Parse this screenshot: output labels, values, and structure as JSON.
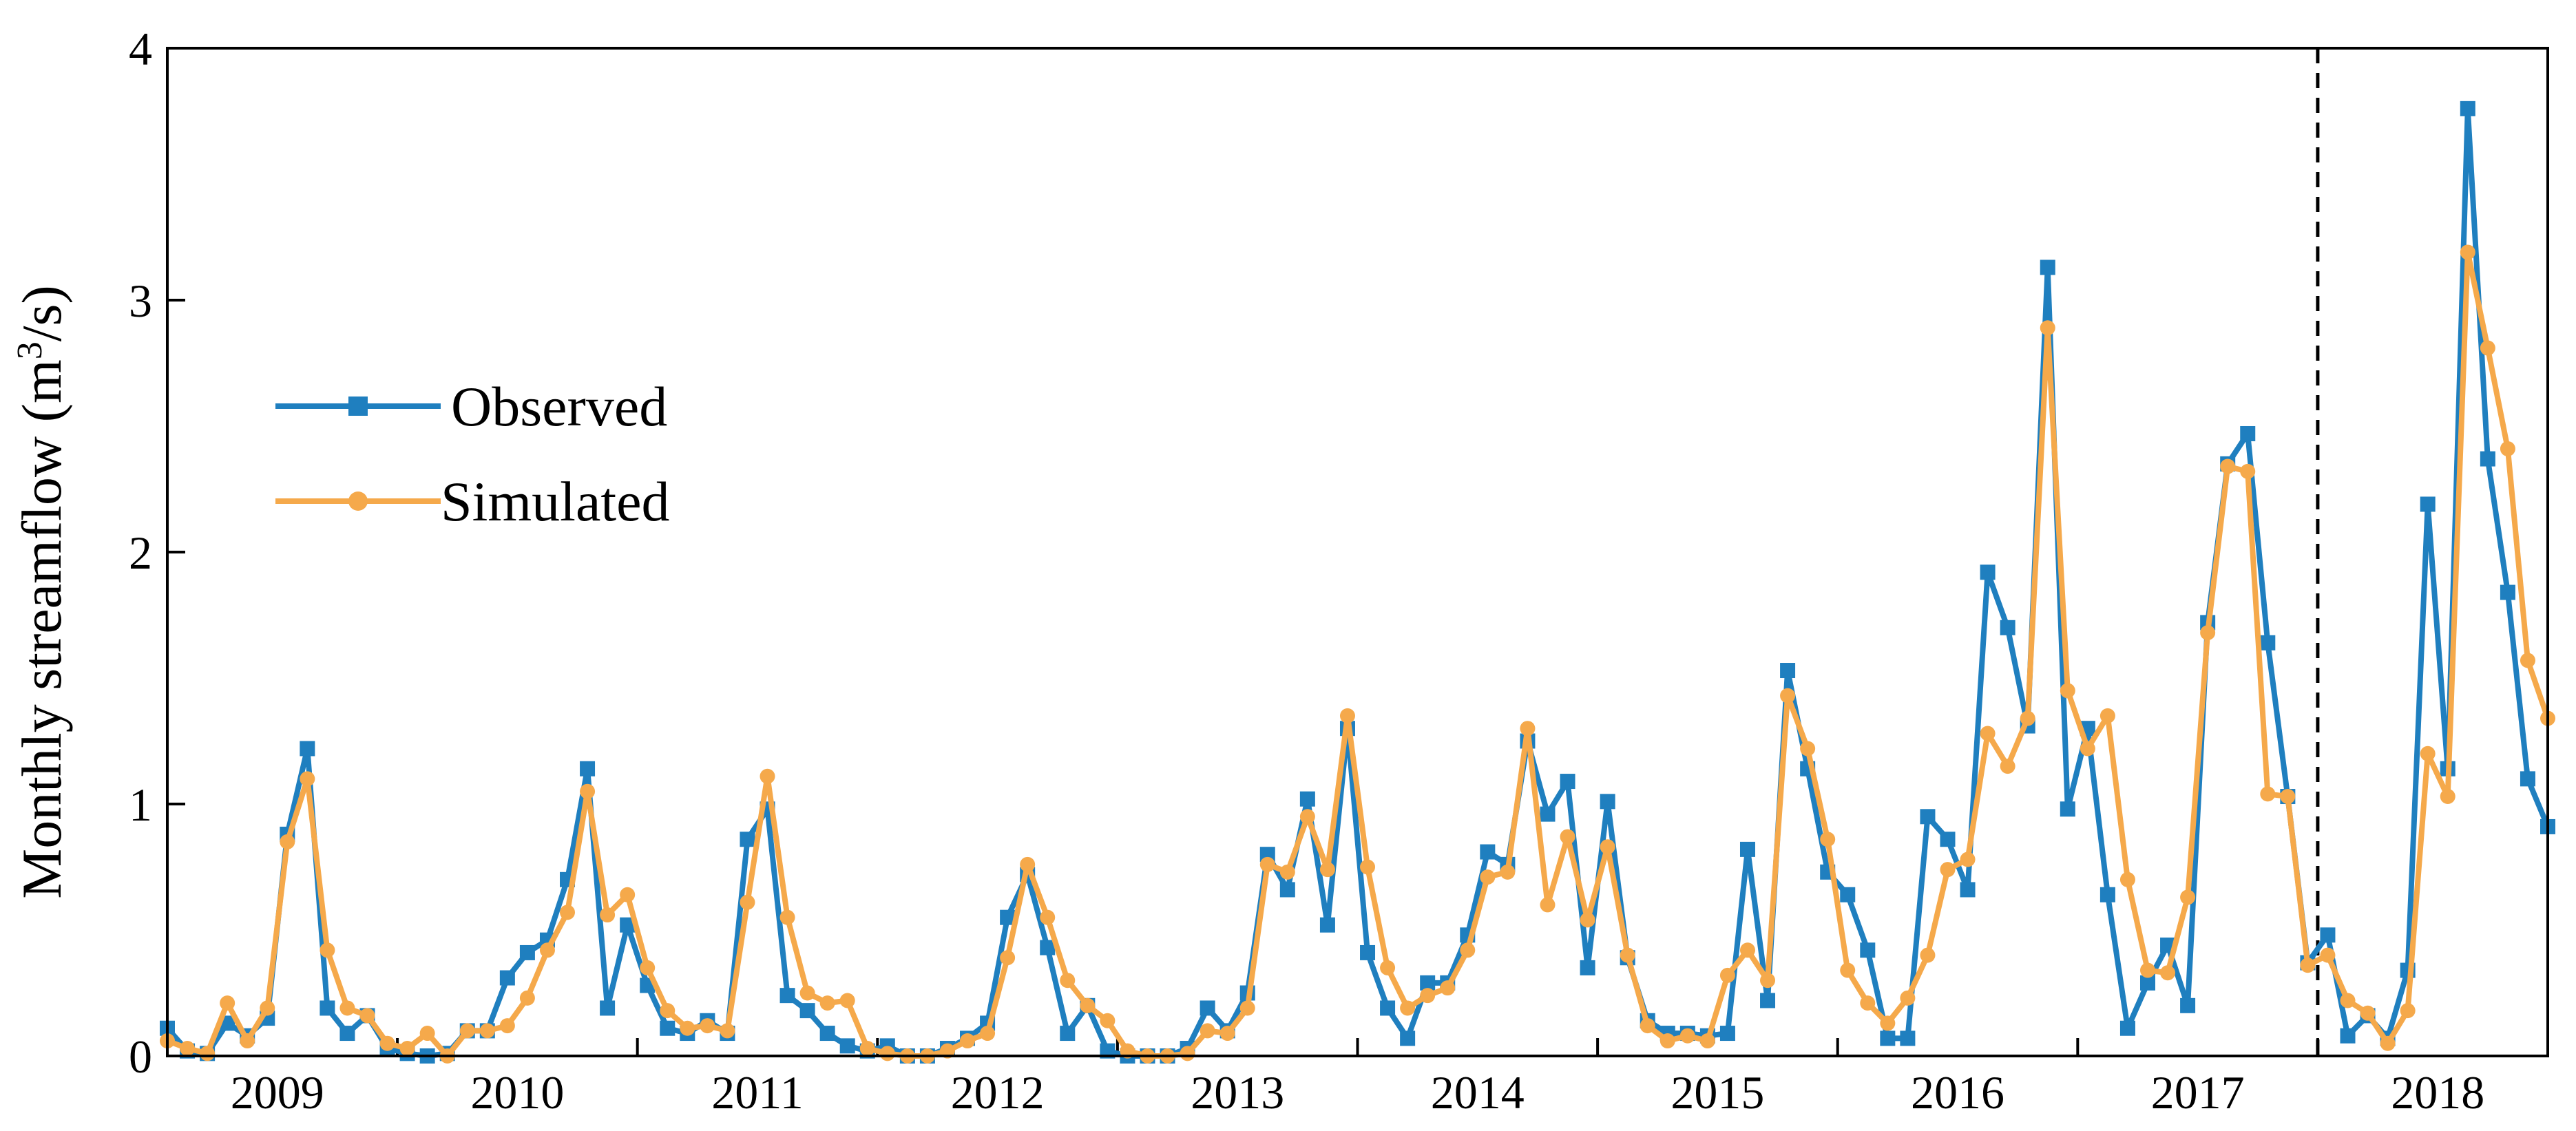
{
  "chart_data": {
    "type": "line",
    "ylabel_main": "Monthly streamflow (m",
    "ylabel_sup": "3",
    "ylabel_tail": "/s)",
    "ylim": [
      0,
      4
    ],
    "yticks": [
      0,
      1,
      2,
      3,
      4
    ],
    "x_unit": "month",
    "x_start": "2009-01",
    "x_count": 120,
    "year_labels": [
      "2009",
      "2010",
      "2011",
      "2012",
      "2013",
      "2014",
      "2015",
      "2016",
      "2017",
      "2018"
    ],
    "vline_after_month": "2017-12",
    "legend_position": "left-center",
    "grid": false,
    "series": [
      {
        "name": "Observed",
        "color": "#1f7fbf",
        "marker": "square",
        "values": [
          0.11,
          0.02,
          0.01,
          0.13,
          0.08,
          0.15,
          0.88,
          1.22,
          0.19,
          0.09,
          0.16,
          0.03,
          0.01,
          0.0,
          0.01,
          0.1,
          0.1,
          0.31,
          0.41,
          0.46,
          0.7,
          1.14,
          0.19,
          0.52,
          0.28,
          0.11,
          0.09,
          0.14,
          0.09,
          0.86,
          0.98,
          0.24,
          0.18,
          0.09,
          0.04,
          0.02,
          0.04,
          0.0,
          0.0,
          0.03,
          0.07,
          0.13,
          0.55,
          0.72,
          0.43,
          0.09,
          0.2,
          0.02,
          0.0,
          0.0,
          0.0,
          0.03,
          0.19,
          0.1,
          0.25,
          0.8,
          0.66,
          1.02,
          0.52,
          1.3,
          0.41,
          0.19,
          0.07,
          0.29,
          0.29,
          0.48,
          0.81,
          0.76,
          1.25,
          0.96,
          1.09,
          0.35,
          1.01,
          0.39,
          0.14,
          0.09,
          0.09,
          0.08,
          0.09,
          0.82,
          0.22,
          1.53,
          1.14,
          0.73,
          0.64,
          0.42,
          0.07,
          0.07,
          0.95,
          0.86,
          0.66,
          1.92,
          1.7,
          1.31,
          3.13,
          0.98,
          1.3,
          0.64,
          0.11,
          0.29,
          0.44,
          0.2,
          1.72,
          2.35,
          2.47,
          1.64,
          1.03,
          0.37,
          0.48,
          0.08,
          0.16,
          0.07,
          0.34,
          2.19,
          1.14,
          3.76,
          2.37,
          1.84,
          1.1,
          0.91
        ]
      },
      {
        "name": "Simulated",
        "color": "#f5a94b",
        "marker": "circle",
        "values": [
          0.06,
          0.03,
          0.01,
          0.21,
          0.06,
          0.19,
          0.85,
          1.1,
          0.42,
          0.19,
          0.16,
          0.05,
          0.03,
          0.09,
          0.0,
          0.1,
          0.1,
          0.12,
          0.23,
          0.42,
          0.57,
          1.05,
          0.56,
          0.64,
          0.35,
          0.18,
          0.11,
          0.12,
          0.1,
          0.61,
          1.11,
          0.55,
          0.25,
          0.21,
          0.22,
          0.03,
          0.01,
          0.0,
          0.0,
          0.02,
          0.06,
          0.09,
          0.39,
          0.76,
          0.55,
          0.3,
          0.2,
          0.14,
          0.02,
          0.0,
          0.0,
          0.01,
          0.1,
          0.09,
          0.19,
          0.76,
          0.73,
          0.95,
          0.74,
          1.35,
          0.75,
          0.35,
          0.19,
          0.24,
          0.27,
          0.42,
          0.71,
          0.73,
          1.3,
          0.6,
          0.87,
          0.54,
          0.83,
          0.4,
          0.12,
          0.06,
          0.08,
          0.06,
          0.32,
          0.42,
          0.3,
          1.43,
          1.22,
          0.86,
          0.34,
          0.21,
          0.13,
          0.23,
          0.4,
          0.74,
          0.78,
          1.28,
          1.15,
          1.34,
          2.89,
          1.45,
          1.22,
          1.35,
          0.7,
          0.34,
          0.33,
          0.63,
          1.68,
          2.34,
          2.32,
          1.04,
          1.03,
          0.36,
          0.4,
          0.22,
          0.17,
          0.05,
          0.18,
          1.2,
          1.03,
          3.19,
          2.81,
          2.41,
          1.57,
          1.34
        ]
      }
    ]
  }
}
